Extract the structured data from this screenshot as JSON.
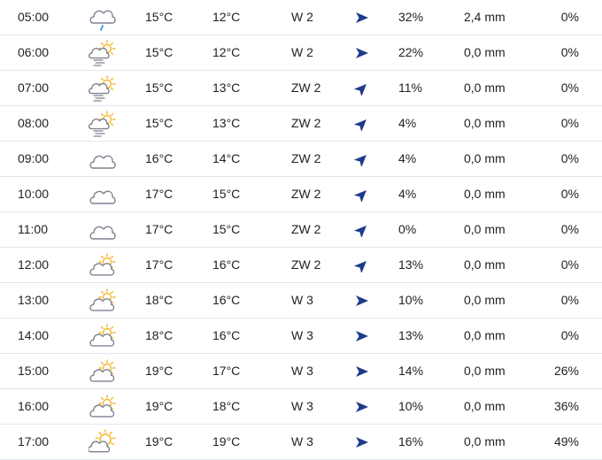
{
  "colors": {
    "cloud": "#7d8290",
    "sun": "#f5b52a",
    "rain": "#2a9fd8",
    "arrow": "#1e3a8a",
    "divider": "#e3e6ee"
  },
  "rows": [
    {
      "time": "05:00",
      "icon": "cloud-rain-icon",
      "temp": "15°C",
      "feels": "12°C",
      "wind": "W 2",
      "dir": "east",
      "humidity": "32%",
      "precip": "2,4 mm",
      "chance": "0%"
    },
    {
      "time": "06:00",
      "icon": "sun-fog-cloud-icon",
      "temp": "15°C",
      "feels": "12°C",
      "wind": "W 2",
      "dir": "east",
      "humidity": "22%",
      "precip": "0,0 mm",
      "chance": "0%"
    },
    {
      "time": "07:00",
      "icon": "sun-fog-cloud-icon",
      "temp": "15°C",
      "feels": "13°C",
      "wind": "ZW 2",
      "dir": "northeast",
      "humidity": "11%",
      "precip": "0,0 mm",
      "chance": "0%"
    },
    {
      "time": "08:00",
      "icon": "sun-fog-cloud-icon",
      "temp": "15°C",
      "feels": "13°C",
      "wind": "ZW 2",
      "dir": "northeast",
      "humidity": "4%",
      "precip": "0,0 mm",
      "chance": "0%"
    },
    {
      "time": "09:00",
      "icon": "cloud-icon",
      "temp": "16°C",
      "feels": "14°C",
      "wind": "ZW 2",
      "dir": "northeast",
      "humidity": "4%",
      "precip": "0,0 mm",
      "chance": "0%"
    },
    {
      "time": "10:00",
      "icon": "cloud-icon",
      "temp": "17°C",
      "feels": "15°C",
      "wind": "ZW 2",
      "dir": "northeast",
      "humidity": "4%",
      "precip": "0,0 mm",
      "chance": "0%"
    },
    {
      "time": "11:00",
      "icon": "cloud-icon",
      "temp": "17°C",
      "feels": "15°C",
      "wind": "ZW 2",
      "dir": "northeast",
      "humidity": "0%",
      "precip": "0,0 mm",
      "chance": "0%"
    },
    {
      "time": "12:00",
      "icon": "partly-cloudy-icon",
      "temp": "17°C",
      "feels": "16°C",
      "wind": "ZW 2",
      "dir": "northeast",
      "humidity": "13%",
      "precip": "0,0 mm",
      "chance": "0%"
    },
    {
      "time": "13:00",
      "icon": "partly-cloudy-icon",
      "temp": "18°C",
      "feels": "16°C",
      "wind": "W 3",
      "dir": "east",
      "humidity": "10%",
      "precip": "0,0 mm",
      "chance": "0%"
    },
    {
      "time": "14:00",
      "icon": "partly-cloudy-icon",
      "temp": "18°C",
      "feels": "16°C",
      "wind": "W 3",
      "dir": "east",
      "humidity": "13%",
      "precip": "0,0 mm",
      "chance": "0%"
    },
    {
      "time": "15:00",
      "icon": "partly-cloudy-icon",
      "temp": "19°C",
      "feels": "17°C",
      "wind": "W 3",
      "dir": "east",
      "humidity": "14%",
      "precip": "0,0 mm",
      "chance": "26%"
    },
    {
      "time": "16:00",
      "icon": "partly-cloudy-icon",
      "temp": "19°C",
      "feels": "18°C",
      "wind": "W 3",
      "dir": "east",
      "humidity": "10%",
      "precip": "0,0 mm",
      "chance": "36%"
    },
    {
      "time": "17:00",
      "icon": "sun-behind-cloud-icon",
      "temp": "19°C",
      "feels": "19°C",
      "wind": "W 3",
      "dir": "east",
      "humidity": "16%",
      "precip": "0,0 mm",
      "chance": "49%"
    }
  ]
}
